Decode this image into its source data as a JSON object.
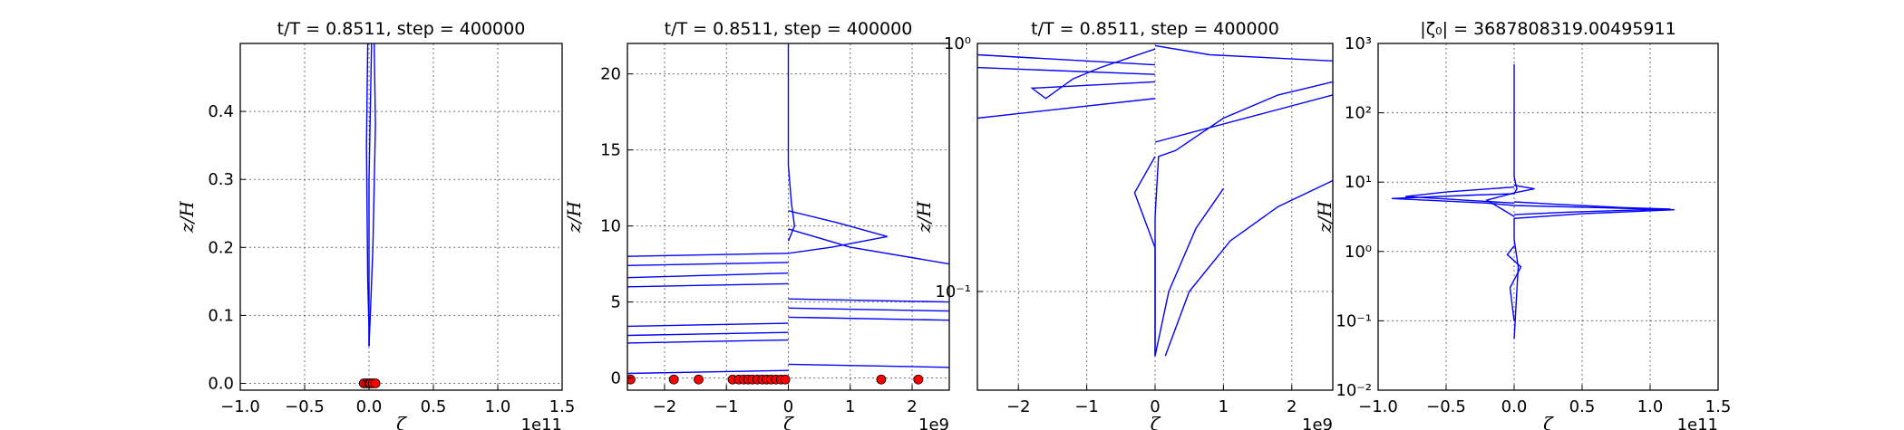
{
  "chart_data": [
    {
      "type": "line",
      "title": "t/T = 0.8511, step = 400000",
      "xlabel": "ζ",
      "ylabel": "z/H",
      "x_multiplier": "1e11",
      "xlim": [
        -1.0,
        1.5
      ],
      "ylim": [
        -0.01,
        0.5
      ],
      "yscale": "linear",
      "grid": true,
      "x_ticks": [
        "−1.0",
        "−0.5",
        "0.0",
        "0.5",
        "1.0",
        "1.5"
      ],
      "x_tick_values": [
        -1.0,
        -0.5,
        0.0,
        0.5,
        1.0,
        1.5
      ],
      "y_ticks": [
        "0.0",
        "0.1",
        "0.2",
        "0.3",
        "0.4"
      ],
      "y_tick_values": [
        0.0,
        0.1,
        0.2,
        0.3,
        0.4
      ],
      "series": [
        {
          "x": [
            -0.01,
            -0.02,
            -0.01,
            0.0,
            0.0
          ],
          "y": [
            0.5,
            0.35,
            0.15,
            0.08,
            0.055
          ]
        },
        {
          "x": [
            0.04,
            0.05,
            0.03,
            0.01,
            0.0
          ],
          "y": [
            0.5,
            0.38,
            0.2,
            0.1,
            0.055
          ]
        },
        {
          "x": [
            0.02,
            0.0,
            0.0
          ],
          "y": [
            0.5,
            0.3,
            0.055
          ]
        }
      ],
      "points": {
        "x": [
          -0.04,
          -0.02,
          0.0,
          0.01,
          0.03,
          0.05
        ],
        "y": [
          0.0,
          0.0,
          0.0,
          0.0,
          0.0,
          0.0
        ]
      }
    },
    {
      "type": "line",
      "title": "t/T = 0.8511, step = 400000",
      "xlabel": "ζ",
      "ylabel": "z/H",
      "x_multiplier": "1e9",
      "xlim": [
        -2.6,
        2.6
      ],
      "ylim": [
        -0.8,
        22
      ],
      "yscale": "linear",
      "grid": true,
      "x_ticks": [
        "−2",
        "−1",
        "0",
        "1",
        "2"
      ],
      "x_tick_values": [
        -2,
        -1,
        0,
        1,
        2
      ],
      "y_ticks": [
        "0",
        "5",
        "10",
        "15",
        "20"
      ],
      "y_tick_values": [
        0,
        5,
        10,
        15,
        20
      ],
      "series": [
        {
          "x": [
            0.0,
            0.0,
            0.0,
            0.05,
            0.1,
            0.0
          ],
          "y": [
            22,
            18,
            14,
            11.5,
            10,
            9
          ]
        },
        {
          "x": [
            0.0,
            0.8,
            1.6,
            0.7,
            0.0
          ],
          "y": [
            11,
            10.2,
            9.3,
            8.6,
            8.2
          ]
        },
        {
          "x": [
            0.0,
            1.0,
            2.6
          ],
          "y": [
            9.8,
            8.6,
            7.5
          ]
        },
        {
          "x": [
            0.0,
            -2.6
          ],
          "y": [
            8.2,
            8.0
          ]
        },
        {
          "x": [
            0.0,
            -2.6
          ],
          "y": [
            7.6,
            7.4
          ]
        },
        {
          "x": [
            0.0,
            -2.6
          ],
          "y": [
            6.9,
            6.6
          ]
        },
        {
          "x": [
            0.0,
            -2.6
          ],
          "y": [
            6.2,
            6.0
          ]
        },
        {
          "x": [
            0.0,
            2.6
          ],
          "y": [
            5.2,
            5.0
          ]
        },
        {
          "x": [
            0.0,
            2.6
          ],
          "y": [
            4.6,
            4.4
          ]
        },
        {
          "x": [
            0.0,
            2.6
          ],
          "y": [
            4.0,
            3.8
          ]
        },
        {
          "x": [
            0.0,
            -2.6
          ],
          "y": [
            3.6,
            3.4
          ]
        },
        {
          "x": [
            0.0,
            -2.6
          ],
          "y": [
            3.0,
            2.8
          ]
        },
        {
          "x": [
            0.0,
            -2.6
          ],
          "y": [
            2.5,
            2.3
          ]
        },
        {
          "x": [
            0.0,
            2.6
          ],
          "y": [
            0.9,
            0.7
          ]
        },
        {
          "x": [
            0.0,
            -2.6
          ],
          "y": [
            0.5,
            0.3
          ]
        }
      ],
      "points": {
        "x": [
          -2.55,
          -1.85,
          -1.45,
          -0.9,
          -0.8,
          -0.72,
          -0.65,
          -0.58,
          -0.5,
          -0.42,
          -0.35,
          -0.28,
          -0.2,
          -0.12,
          -0.05,
          1.5,
          2.1
        ],
        "y": [
          -0.1,
          -0.1,
          -0.1,
          -0.1,
          -0.1,
          -0.1,
          -0.1,
          -0.1,
          -0.1,
          -0.1,
          -0.1,
          -0.1,
          -0.1,
          -0.1,
          -0.1,
          -0.1,
          -0.1
        ]
      }
    },
    {
      "type": "line",
      "title": "t/T = 0.8511, step = 400000",
      "xlabel": "ζ",
      "ylabel": "z/H",
      "x_multiplier": "1e9",
      "xlim": [
        -2.6,
        2.6
      ],
      "ylim": [
        0.04,
        1.0
      ],
      "yscale": "log",
      "grid": true,
      "x_ticks": [
        "−2",
        "−1",
        "0",
        "1",
        "2"
      ],
      "x_tick_values": [
        -2,
        -1,
        0,
        1,
        2
      ],
      "y_ticks": [
        "10⁻¹",
        "10⁰"
      ],
      "y_tick_values": [
        0.1,
        1.0
      ],
      "series": [
        {
          "x": [
            0.0,
            0.0,
            0.05,
            0.3,
            1.0,
            1.8,
            2.6
          ],
          "y": [
            0.055,
            0.2,
            0.35,
            0.37,
            0.5,
            0.62,
            0.7
          ]
        },
        {
          "x": [
            0.0,
            0.2,
            0.6,
            1.0
          ],
          "y": [
            0.055,
            0.1,
            0.18,
            0.26
          ]
        },
        {
          "x": [
            0.0,
            0.0,
            -0.3,
            0.0
          ],
          "y": [
            0.055,
            0.15,
            0.25,
            0.35
          ]
        },
        {
          "x": [
            0.15,
            0.5,
            1.1,
            1.8,
            2.6
          ],
          "y": [
            0.055,
            0.1,
            0.16,
            0.22,
            0.28
          ]
        },
        {
          "x": [
            0.0,
            -1.8,
            -1.6,
            -1.2,
            -0.8,
            0.0
          ],
          "y": [
            0.7,
            0.66,
            0.6,
            0.72,
            0.8,
            0.95
          ]
        },
        {
          "x": [
            0.0,
            -2.6
          ],
          "y": [
            0.75,
            0.8
          ]
        },
        {
          "x": [
            0.0,
            -2.6
          ],
          "y": [
            0.6,
            0.5
          ]
        },
        {
          "x": [
            0.0,
            -2.6
          ],
          "y": [
            0.82,
            0.9
          ]
        },
        {
          "x": [
            0.0,
            0.8,
            2.6
          ],
          "y": [
            0.98,
            0.9,
            0.85
          ]
        },
        {
          "x": [
            0.0,
            2.6
          ],
          "y": [
            0.4,
            0.62
          ]
        }
      ]
    },
    {
      "type": "line",
      "title": "|ζ₀| = 3687808319.00495911",
      "xlabel": "ζ",
      "ylabel": "z/H",
      "x_multiplier": "1e11",
      "xlim": [
        -1.0,
        1.5
      ],
      "ylim": [
        0.01,
        1000
      ],
      "yscale": "log",
      "grid": true,
      "x_ticks": [
        "−1.0",
        "−0.5",
        "0.0",
        "0.5",
        "1.0",
        "1.5"
      ],
      "x_tick_values": [
        -1.0,
        -0.5,
        0.0,
        0.5,
        1.0,
        1.5
      ],
      "y_ticks": [
        "10⁻²",
        "10⁻¹",
        "10⁰",
        "10¹",
        "10²",
        "10³"
      ],
      "y_tick_values": [
        0.01,
        0.1,
        1,
        10,
        100,
        1000
      ],
      "series": [
        {
          "x": [
            0.0,
            0.0,
            0.0,
            0.02,
            0.0,
            -0.3,
            -0.9,
            -0.2,
            0.0,
            0.6,
            1.18,
            0.5,
            0.0,
            0.0,
            0.03,
            0.0
          ],
          "y": [
            500,
            60,
            12,
            8,
            6.8,
            6.5,
            5.8,
            5.0,
            4.6,
            4.3,
            4.0,
            3.5,
            3.0,
            1.5,
            0.6,
            0.055
          ]
        },
        {
          "x": [
            0.0,
            -0.5,
            -0.8,
            -0.3,
            0.0
          ],
          "y": [
            8.5,
            7.2,
            6.2,
            5.4,
            5.0
          ]
        },
        {
          "x": [
            0.0,
            0.3,
            0.8,
            1.15,
            0.4,
            0.0
          ],
          "y": [
            5.2,
            4.8,
            4.3,
            4.1,
            3.7,
            3.4
          ]
        },
        {
          "x": [
            0.0,
            0.15,
            0.0,
            -0.2,
            0.0
          ],
          "y": [
            9.0,
            8.0,
            7.0,
            5.5,
            3.2
          ]
        },
        {
          "x": [
            0.0,
            -0.05,
            0.05,
            -0.03,
            0.0
          ],
          "y": [
            1.2,
            0.9,
            0.6,
            0.3,
            0.1
          ]
        }
      ]
    }
  ]
}
